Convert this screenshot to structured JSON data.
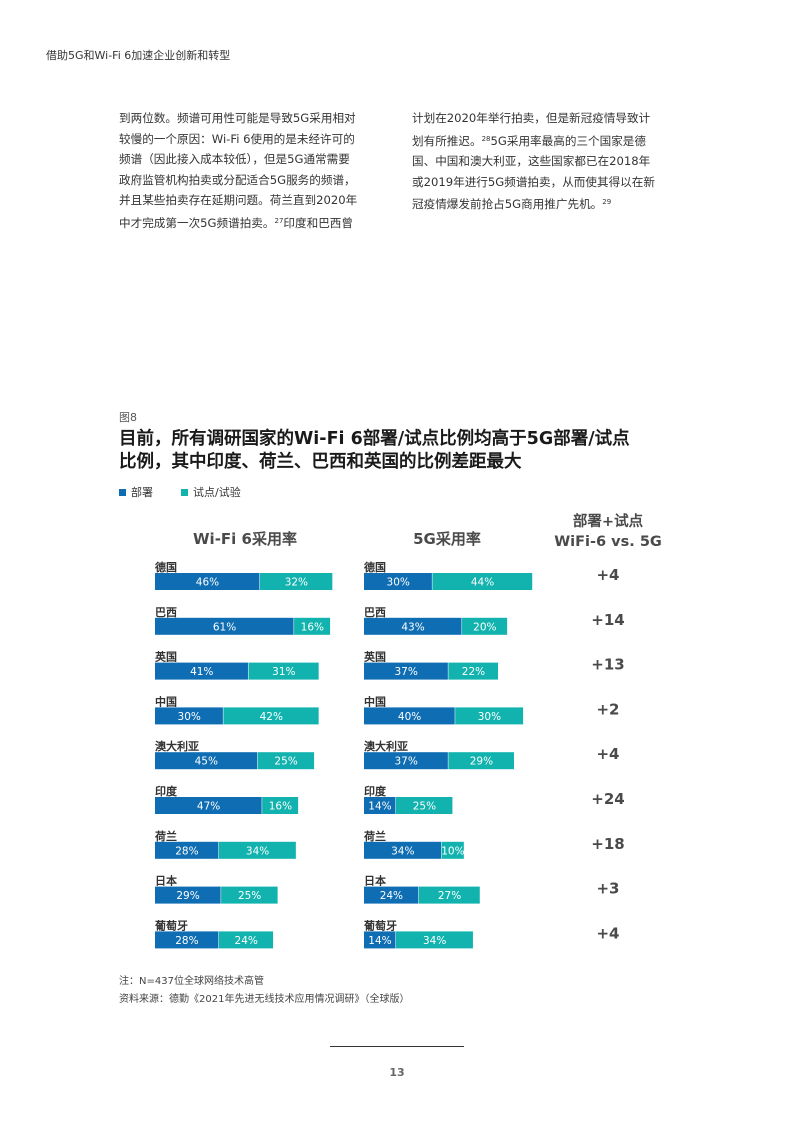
{
  "header": {
    "title": "借助5G和Wi-Fi 6加速企业创新和转型"
  },
  "body": {
    "left_lines": [
      "到两位数。频谱可用性可能是导致5G采用相对",
      "较慢的一个原因：Wi-Fi 6使用的是未经许可的",
      "频谱（因此接入成本较低），但是5G通常需要",
      "政府监管机构拍卖或分配适合5G服务的频谱，",
      "并且某些拍卖存在延期问题。荷兰直到2020年",
      "中才完成第一次5G频谱拍卖。"
    ],
    "left_sup": "27",
    "left_tail": "印度和巴西曾",
    "right_line1": "计划在2020年举行拍卖，但是新冠疫情导致计",
    "right_line2a": "划有所推迟。",
    "right_sup1": "28",
    "right_line2b": "5G采用率最高的三个国家是德",
    "right_lines_mid": [
      "国、中国和澳大利亚，这些国家都已在2018年",
      "或2019年进行5G频谱拍卖，从而使其得以在新"
    ],
    "right_line5": "冠疫情爆发前抢占5G商用推广先机。",
    "right_sup2": "29"
  },
  "figure": {
    "label": "图8",
    "title_line1": "目前，所有调研国家的Wi-Fi 6部署/试点比例均高于5G部署/试点",
    "title_line2": "比例，其中印度、荷兰、巴西和英国的比例差距最大",
    "legend": {
      "deploy": "部署",
      "trial": "试点/试验"
    }
  },
  "chart_data": {
    "type": "bar",
    "stacked": true,
    "orientation": "horizontal",
    "panels": [
      {
        "title": "Wi-Fi 6采用率"
      },
      {
        "title": "5G采用率"
      }
    ],
    "diff_title_line1": "部署+试点",
    "diff_title_line2": "WiFi-6 vs. 5G",
    "series_names": [
      "部署",
      "试点/试验"
    ],
    "colors": {
      "deploy": "#0f6db3",
      "trial": "#12b3ae"
    },
    "value_suffix": "%",
    "countries": [
      {
        "name": "德国",
        "wifi6": [
          46,
          32
        ],
        "g5": [
          30,
          44
        ],
        "diff": "+4"
      },
      {
        "name": "巴西",
        "wifi6": [
          61,
          16
        ],
        "g5": [
          43,
          20
        ],
        "diff": "+14"
      },
      {
        "name": "英国",
        "wifi6": [
          41,
          31
        ],
        "g5": [
          37,
          22
        ],
        "diff": "+13"
      },
      {
        "name": "中国",
        "wifi6": [
          30,
          42
        ],
        "g5": [
          40,
          30
        ],
        "diff": "+2"
      },
      {
        "name": "澳大利亚",
        "wifi6": [
          45,
          25
        ],
        "g5": [
          37,
          29
        ],
        "diff": "+4"
      },
      {
        "name": "印度",
        "wifi6": [
          47,
          16
        ],
        "g5": [
          14,
          25
        ],
        "diff": "+24"
      },
      {
        "name": "荷兰",
        "wifi6": [
          28,
          34
        ],
        "g5": [
          34,
          10
        ],
        "diff": "+18"
      },
      {
        "name": "日本",
        "wifi6": [
          29,
          25
        ],
        "g5": [
          24,
          27
        ],
        "diff": "+3"
      },
      {
        "name": "葡萄牙",
        "wifi6": [
          28,
          24
        ],
        "g5": [
          14,
          34
        ],
        "diff": "+4"
      }
    ]
  },
  "notes": {
    "note": "注：N=437位全球网络技术高管",
    "source": "资料来源：德勤《2021年先进无线技术应用情况调研》（全球版）"
  },
  "footer": {
    "page": "13"
  }
}
